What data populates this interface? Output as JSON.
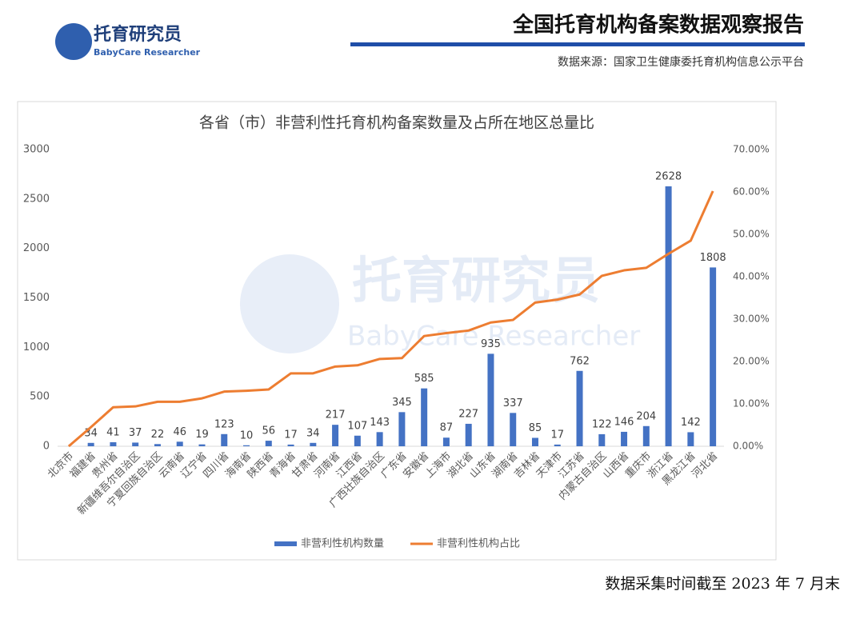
{
  "header": {
    "logo_cn": "托育研究员",
    "logo_en": "BabyCare Researcher",
    "title": "全国托育机构备案数据观察报告",
    "source": "数据来源：国家卫生健康委托育机构信息公示平台"
  },
  "watermark": {
    "cn": "托育研究员",
    "en": "BabyCare Researcher"
  },
  "chart_data": {
    "type": "bar",
    "title": "各省（市）非营利性托育机构备案数量及占所在地区总量比",
    "categories": [
      "北京市",
      "福建省",
      "贵州省",
      "新疆维吾尔自治区",
      "宁夏回族自治区",
      "云南省",
      "辽宁省",
      "四川省",
      "海南省",
      "陕西省",
      "青海省",
      "甘肃省",
      "河南省",
      "江西省",
      "广西壮族自治区",
      "广东省",
      "安徽省",
      "上海市",
      "湖北省",
      "山东省",
      "湖南省",
      "吉林省",
      "天津市",
      "江苏省",
      "内蒙古自治区",
      "山西省",
      "重庆市",
      "浙江省",
      "黑龙江省",
      "河北省"
    ],
    "series": [
      {
        "name": "非营利性机构数量",
        "type": "bar",
        "color": "#4472c4",
        "values": [
          0,
          34,
          41,
          37,
          22,
          46,
          19,
          123,
          10,
          56,
          17,
          34,
          217,
          107,
          143,
          345,
          585,
          87,
          227,
          935,
          337,
          85,
          17,
          762,
          122,
          146,
          204,
          2628,
          142,
          1808
        ]
      },
      {
        "name": "非营利性机构占比",
        "type": "line",
        "axis": "y2",
        "color": "#ed7d31",
        "values": [
          0,
          4.5,
          9.2,
          9.4,
          10.5,
          10.5,
          11.3,
          12.9,
          13.1,
          13.4,
          17.2,
          17.2,
          18.8,
          19.1,
          20.6,
          20.8,
          26.0,
          26.7,
          27.3,
          29.2,
          29.8,
          33.9,
          34.6,
          35.8,
          40.2,
          41.5,
          42.1,
          45.4,
          48.5,
          60.2
        ]
      }
    ],
    "ylim": [
      0,
      3000
    ],
    "yticks": [
      0,
      500,
      1000,
      1500,
      2000,
      2500,
      3000
    ],
    "y2lim": [
      0,
      70
    ],
    "y2ticks": [
      {
        "value": 0,
        "label": "0.00%"
      },
      {
        "value": 10,
        "label": "10.00%"
      },
      {
        "value": 20,
        "label": "20.00%"
      },
      {
        "value": 30,
        "label": "30.00%"
      },
      {
        "value": 40,
        "label": "40.00%"
      },
      {
        "value": 50,
        "label": "50.00%"
      },
      {
        "value": 60,
        "label": "60.00%"
      },
      {
        "value": 70,
        "label": "70.00%"
      }
    ],
    "legend": "bottom"
  },
  "footer": "数据采集时间截至 2023 年 7 月末"
}
